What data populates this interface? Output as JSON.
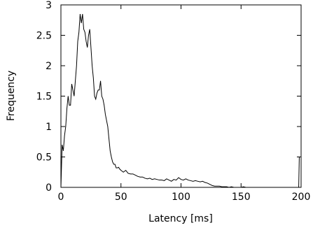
{
  "chart_data": {
    "type": "line",
    "xlabel": "Latency [ms]",
    "ylabel": "Frequency",
    "xlim": [
      0,
      200
    ],
    "ylim": [
      0,
      3
    ],
    "xticks": [
      0,
      50,
      100,
      150,
      200
    ],
    "yticks": [
      0,
      0.5,
      1,
      1.5,
      2,
      2.5,
      3
    ],
    "ytick_labels": [
      "0",
      "0.5",
      "1",
      "1.5",
      "2",
      "2.5",
      "3"
    ],
    "grid": false,
    "line_color": "#000000",
    "series": [
      {
        "x": [
          0,
          1,
          2,
          3,
          4,
          5,
          6,
          7,
          8,
          9,
          10,
          11,
          12,
          13,
          14,
          15,
          16,
          17,
          18,
          19,
          20,
          21,
          22,
          23,
          24,
          25,
          26,
          27,
          28,
          29,
          30,
          31,
          32,
          33,
          34,
          35,
          36,
          37,
          38,
          39,
          40,
          41,
          42,
          43,
          44,
          45,
          46,
          47,
          48,
          49,
          50,
          52,
          54,
          56,
          58,
          60,
          62,
          64,
          66,
          68,
          70,
          72,
          74,
          76,
          78,
          80,
          82,
          84,
          86,
          88,
          90,
          92,
          94,
          96,
          98,
          100,
          102,
          104,
          106,
          108,
          110,
          112,
          114,
          116,
          118,
          120,
          122,
          124,
          126,
          128,
          130,
          132,
          134,
          136,
          138,
          140,
          142,
          144,
          146,
          148,
          150,
          152,
          154,
          156,
          158,
          160,
          162,
          164,
          166,
          168,
          170,
          172,
          174,
          176,
          178,
          180,
          182,
          184,
          186,
          188,
          190,
          192,
          194,
          196,
          197,
          198,
          198.5
        ],
        "y": [
          0.0,
          0.7,
          0.6,
          0.85,
          1.0,
          1.3,
          1.5,
          1.35,
          1.35,
          1.7,
          1.6,
          1.5,
          1.75,
          2.0,
          2.4,
          2.55,
          2.85,
          2.7,
          2.85,
          2.6,
          2.55,
          2.4,
          2.3,
          2.5,
          2.6,
          2.3,
          2.0,
          1.8,
          1.5,
          1.45,
          1.55,
          1.6,
          1.6,
          1.75,
          1.5,
          1.45,
          1.35,
          1.2,
          1.1,
          1.0,
          0.8,
          0.6,
          0.5,
          0.42,
          0.38,
          0.38,
          0.32,
          0.32,
          0.33,
          0.3,
          0.28,
          0.25,
          0.28,
          0.23,
          0.22,
          0.22,
          0.2,
          0.18,
          0.17,
          0.17,
          0.15,
          0.14,
          0.15,
          0.13,
          0.14,
          0.13,
          0.12,
          0.12,
          0.11,
          0.14,
          0.12,
          0.1,
          0.13,
          0.12,
          0.16,
          0.13,
          0.12,
          0.14,
          0.12,
          0.11,
          0.1,
          0.11,
          0.1,
          0.09,
          0.1,
          0.08,
          0.07,
          0.05,
          0.03,
          0.02,
          0.02,
          0.02,
          0.01,
          0.01,
          0.01,
          0.0,
          0.01,
          0.0,
          0.0,
          0.0,
          0.0,
          0.01,
          0.0,
          0.0,
          0.0,
          0.0,
          0.0,
          0.0,
          0.0,
          0.0,
          0.0,
          0.0,
          0.0,
          0.0,
          0.0,
          0.0,
          0.0,
          0.0,
          0.0,
          0.0,
          0.0,
          0.0,
          0.0,
          0.0,
          0.0,
          0.0,
          0.5
        ]
      }
    ]
  }
}
